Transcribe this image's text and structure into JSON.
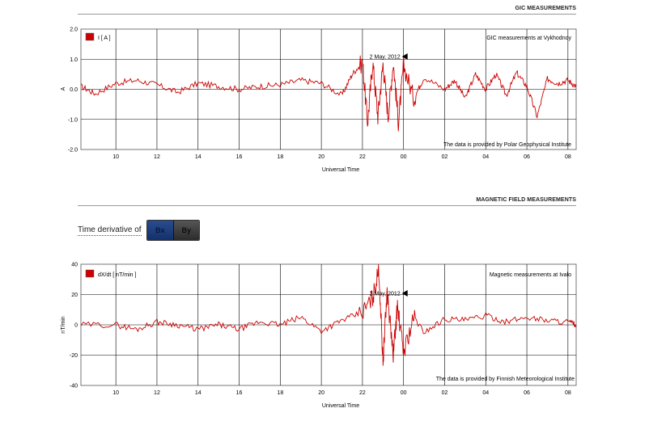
{
  "gic_section": {
    "title": "GIC MEASUREMENTS"
  },
  "mag_section": {
    "title": "MAGNETIC FIELD MEASUREMENTS"
  },
  "derivative_control": {
    "label": "Time derivative of",
    "options": [
      "Bx",
      "By"
    ],
    "selected": "Bx"
  },
  "colors": {
    "series": "#cc0000",
    "grid": "#000000",
    "axis": "#444444"
  },
  "chart_data": [
    {
      "type": "line",
      "legend": "I [ A ]",
      "station_note": "GIC measurements at Vykhodnoy",
      "provider_note": "The data is provided by Polar Geophysical Institute",
      "ylabel": "A",
      "xlabel": "Universal Time",
      "ylim": [
        -2.0,
        2.0
      ],
      "yticks": [
        "2.0",
        "1.0",
        "0.0",
        "-1.0",
        "-2.0"
      ],
      "xticks": [
        "10",
        "12",
        "14",
        "16",
        "18",
        "20",
        "22",
        "00",
        "02",
        "04",
        "06",
        "08"
      ],
      "xrange_hours": [
        8.3,
        32.4
      ],
      "event_marker": {
        "label": "2 May, 2012",
        "hour": 24.0
      },
      "series": [
        {
          "x": [
            8.3,
            9.0,
            10.0,
            11.0,
            12.0,
            13.0,
            14.0,
            15.0,
            16.0,
            17.0,
            18.0,
            19.0,
            20.0,
            21.0,
            21.5,
            22.0,
            22.25,
            22.5,
            22.75,
            23.0,
            23.25,
            23.5,
            23.75,
            24.0,
            24.5,
            25.0,
            26.0,
            26.5,
            27.0,
            27.5,
            28.0,
            28.5,
            29.0,
            29.5,
            30.0,
            30.5,
            31.0,
            31.5,
            32.0,
            32.4
          ],
          "y": [
            0.1,
            -0.15,
            0.2,
            0.3,
            0.15,
            -0.1,
            0.2,
            0.1,
            0.0,
            0.1,
            0.15,
            0.3,
            0.2,
            -0.2,
            0.5,
            0.9,
            -1.1,
            0.9,
            -0.9,
            0.85,
            -0.9,
            0.9,
            -1.1,
            0.8,
            -0.3,
            0.4,
            0.0,
            0.3,
            -0.3,
            0.5,
            0.0,
            0.5,
            -0.2,
            0.55,
            0.1,
            -0.9,
            0.35,
            0.2,
            0.3,
            0.1
          ]
        }
      ]
    },
    {
      "type": "line",
      "legend": "dX/dt [ nT/min ]",
      "station_note": "Magnetic measurements at Ivalo",
      "provider_note": "The data is provided by Finnish Meteorological Institute",
      "ylabel": "nT/min",
      "xlabel": "Universal Time",
      "ylim": [
        -40,
        40
      ],
      "yticks": [
        "40",
        "20",
        "0",
        "-20",
        "-40"
      ],
      "xticks": [
        "10",
        "12",
        "14",
        "16",
        "18",
        "20",
        "22",
        "00",
        "02",
        "04",
        "06",
        "08"
      ],
      "xrange_hours": [
        8.3,
        32.4
      ],
      "event_marker": {
        "label": "2 May, 2012",
        "hour": 24.0
      },
      "series": [
        {
          "x": [
            8.3,
            10.0,
            11.0,
            12.0,
            13.0,
            14.0,
            15.0,
            16.0,
            17.0,
            18.0,
            19.0,
            20.0,
            21.0,
            22.0,
            22.5,
            22.8,
            23.0,
            23.2,
            23.5,
            23.7,
            24.0,
            24.5,
            25.0,
            26.0,
            27.0,
            28.0,
            29.0,
            30.0,
            31.0,
            32.0,
            32.4
          ],
          "y": [
            0,
            0,
            -3,
            2,
            0,
            -3,
            0,
            -3,
            2,
            0,
            5,
            -4,
            3,
            8,
            18,
            36,
            -24,
            22,
            -20,
            12,
            -18,
            5,
            -5,
            4,
            3,
            6,
            2,
            5,
            3,
            2,
            0
          ]
        }
      ]
    }
  ]
}
